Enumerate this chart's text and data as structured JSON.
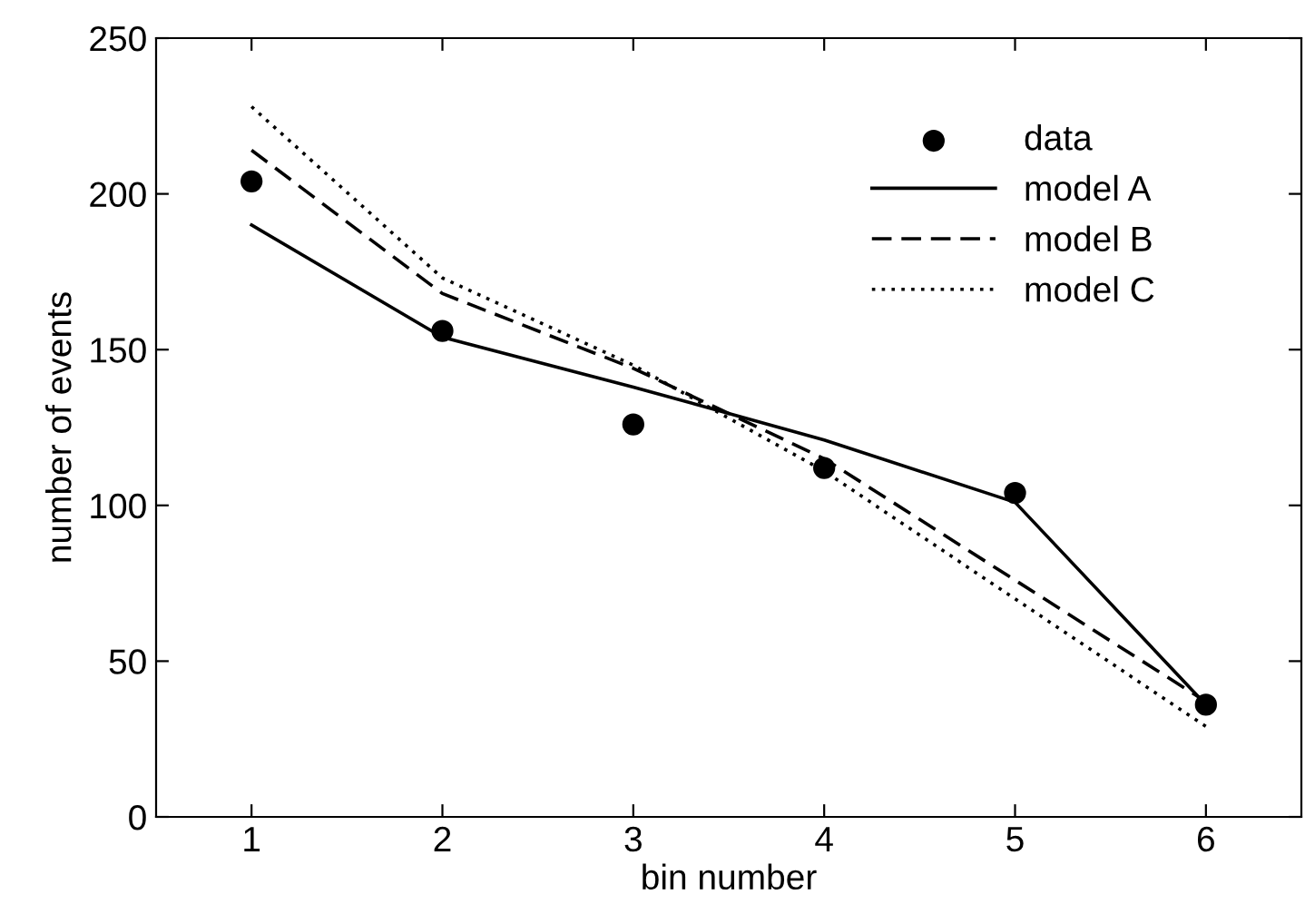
{
  "chart_data": {
    "type": "line",
    "xlabel": "bin number",
    "ylabel": "number of events",
    "x": [
      1,
      2,
      3,
      4,
      5,
      6
    ],
    "xlim": [
      0.5,
      6.5
    ],
    "xticks": [
      1,
      2,
      3,
      4,
      5,
      6
    ],
    "ylim": [
      0,
      250
    ],
    "yticks": [
      0,
      50,
      100,
      150,
      200,
      250
    ],
    "grid": false,
    "legend": "top right",
    "series": [
      {
        "name": "data",
        "type": "scatter",
        "color": "#000000",
        "marker": "circle",
        "values": [
          204,
          156,
          126,
          112,
          104,
          36
        ]
      },
      {
        "name": "model A",
        "color": "#000000",
        "line_style": "solid",
        "marker": "none",
        "values": [
          190,
          154,
          138,
          121,
          101,
          36
        ]
      },
      {
        "name": "model B",
        "color": "#000000",
        "line_style": "dashed",
        "marker": "none",
        "values": [
          214,
          168,
          144,
          115,
          76,
          37
        ]
      },
      {
        "name": "model C",
        "color": "#000000",
        "line_style": "dotted",
        "marker": "none",
        "values": [
          228,
          173,
          145,
          111,
          70,
          29
        ]
      }
    ]
  }
}
